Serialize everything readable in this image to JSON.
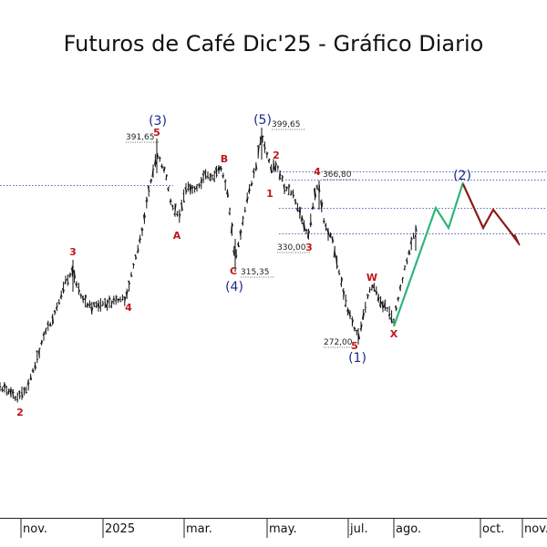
{
  "chart_data": {
    "type": "candlestick-ohlc",
    "title": "Futuros de Café Dic'25 - Gráfico Diario",
    "x_ticks": [
      "nov.",
      "2025",
      "mar.",
      "may.",
      "jul.",
      "ago.",
      "oct.",
      "nov."
    ],
    "price_labels": [
      {
        "text": "391,65",
        "value": 391.65
      },
      {
        "text": "399,65",
        "value": 399.65
      },
      {
        "text": "366,80",
        "value": 366.8
      },
      {
        "text": "330,00",
        "value": 330.0
      },
      {
        "text": "315,35",
        "value": 315.35
      },
      {
        "text": "272,00",
        "value": 272.0
      }
    ],
    "wave_labels": {
      "red": [
        "2",
        "3",
        "4",
        "5",
        "A",
        "B",
        "C",
        "1",
        "2",
        "3",
        "4",
        "5",
        "W",
        "X"
      ],
      "blue": [
        "(3)",
        "(5)",
        "(4)",
        "(1)",
        "(2)"
      ]
    },
    "colors": {
      "bars": "#111111",
      "wave_labels": "#c0161b",
      "degree_labels": "#1a2a8c",
      "projection_up": "#2fb67a",
      "projection_down": "#8b1a1a",
      "levels": "#2a3a9a"
    }
  }
}
